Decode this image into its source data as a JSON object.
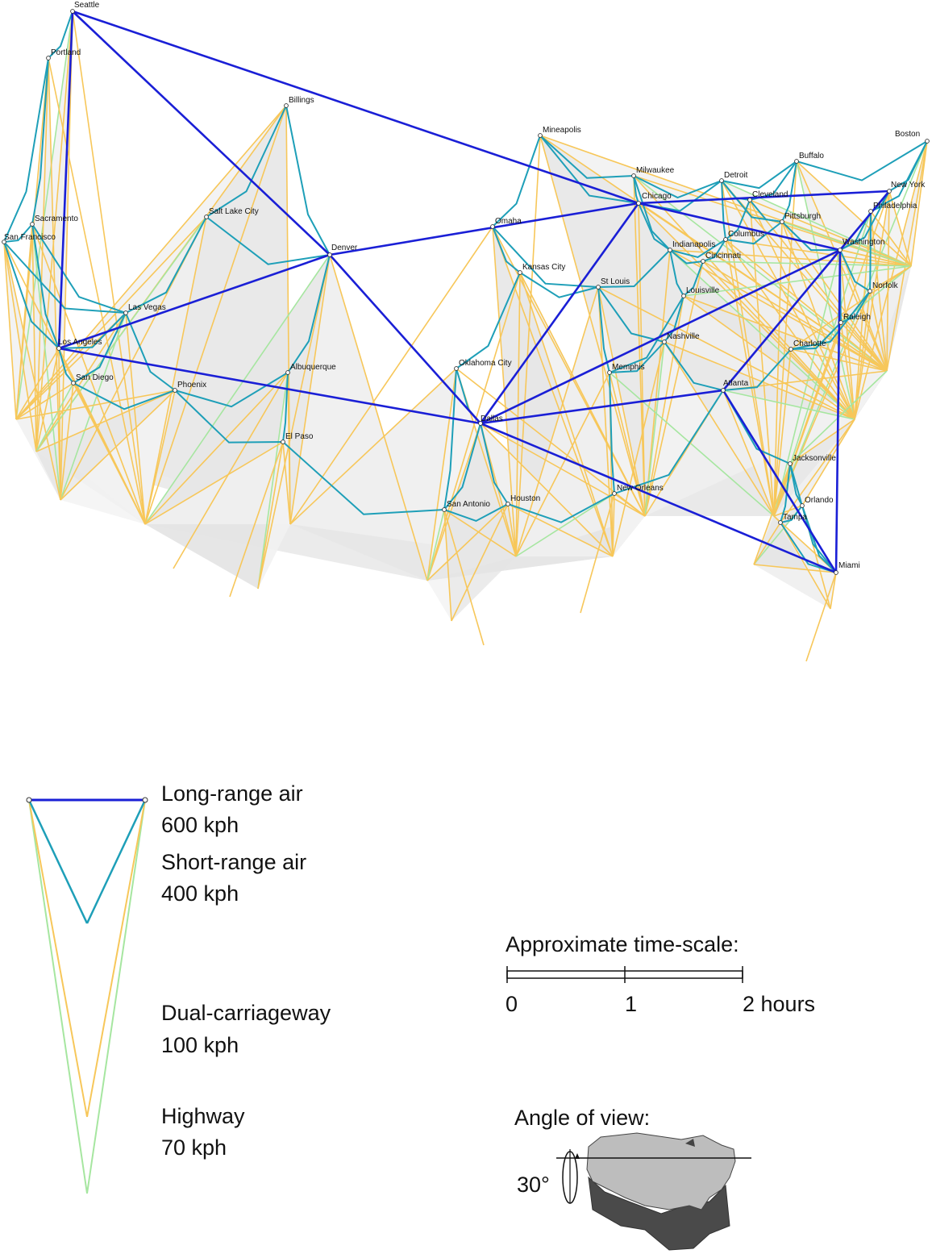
{
  "colors": {
    "long_air": "#1a1fd6",
    "short_air": "#1e9fb8",
    "dual_carriageway": "#f7c75a",
    "highway": "#a6e6a0",
    "surface": "#d9d9d9"
  },
  "cities": [
    {
      "name": "Seattle"
    },
    {
      "name": "Portland"
    },
    {
      "name": "Billings"
    },
    {
      "name": "Mineapolis"
    },
    {
      "name": "Boston"
    },
    {
      "name": "Buffalo"
    },
    {
      "name": "Milwaukee"
    },
    {
      "name": "Detroit"
    },
    {
      "name": "New York"
    },
    {
      "name": "Cleveland"
    },
    {
      "name": "Chicago"
    },
    {
      "name": "Philadelphia"
    },
    {
      "name": "Sacramento"
    },
    {
      "name": "Salt Lake City"
    },
    {
      "name": "Pittsburgh"
    },
    {
      "name": "Omaha"
    },
    {
      "name": "San Francisco"
    },
    {
      "name": "Columbus"
    },
    {
      "name": "Washington"
    },
    {
      "name": "Indianapolis"
    },
    {
      "name": "Denver"
    },
    {
      "name": "Cincinnati"
    },
    {
      "name": "Kansas City"
    },
    {
      "name": "St Louis"
    },
    {
      "name": "Norfolk"
    },
    {
      "name": "Louisville"
    },
    {
      "name": "Las Vegas"
    },
    {
      "name": "Raleigh"
    },
    {
      "name": "Nashville"
    },
    {
      "name": "Los Angeles"
    },
    {
      "name": "Charlotte"
    },
    {
      "name": "Oklahoma City"
    },
    {
      "name": "Memphis"
    },
    {
      "name": "Albuquerque"
    },
    {
      "name": "San Diego"
    },
    {
      "name": "Atlanta"
    },
    {
      "name": "Phoenix"
    },
    {
      "name": "Dallas"
    },
    {
      "name": "El Paso"
    },
    {
      "name": "Jacksonville"
    },
    {
      "name": "New Orleans"
    },
    {
      "name": "Orlando"
    },
    {
      "name": "San Antonio"
    },
    {
      "name": "Houston"
    },
    {
      "name": "Tampa"
    },
    {
      "name": "Miami"
    }
  ],
  "long_range_routes": [
    [
      "Seattle",
      "Chicago"
    ],
    [
      "Seattle",
      "Denver"
    ],
    [
      "Seattle",
      "Los Angeles"
    ],
    [
      "Los Angeles",
      "Denver"
    ],
    [
      "Los Angeles",
      "Dallas"
    ],
    [
      "Denver",
      "Chicago"
    ],
    [
      "Denver",
      "Dallas"
    ],
    [
      "Chicago",
      "Dallas"
    ],
    [
      "Chicago",
      "New York"
    ],
    [
      "Chicago",
      "Washington"
    ],
    [
      "Dallas",
      "Washington"
    ],
    [
      "Dallas",
      "Atlanta"
    ],
    [
      "Dallas",
      "Miami"
    ],
    [
      "Washington",
      "Atlanta"
    ],
    [
      "Washington",
      "Miami"
    ],
    [
      "Atlanta",
      "Miami"
    ],
    [
      "Washington",
      "New York"
    ]
  ],
  "legend": {
    "long_air_line1": "Long-range air",
    "long_air_line2": "600 kph",
    "short_air_line1": "Short-range air",
    "short_air_line2": "400 kph",
    "dual_line1": "Dual-carriageway",
    "dual_line2": "100 kph",
    "highway_line1": "Highway",
    "highway_line2": "70 kph"
  },
  "time_scale": {
    "title": "Approximate time-scale:",
    "tick_0": "0",
    "tick_1": "1",
    "tick_2": "2 hours"
  },
  "view": {
    "title": "Angle of view:",
    "angle": "30°"
  }
}
